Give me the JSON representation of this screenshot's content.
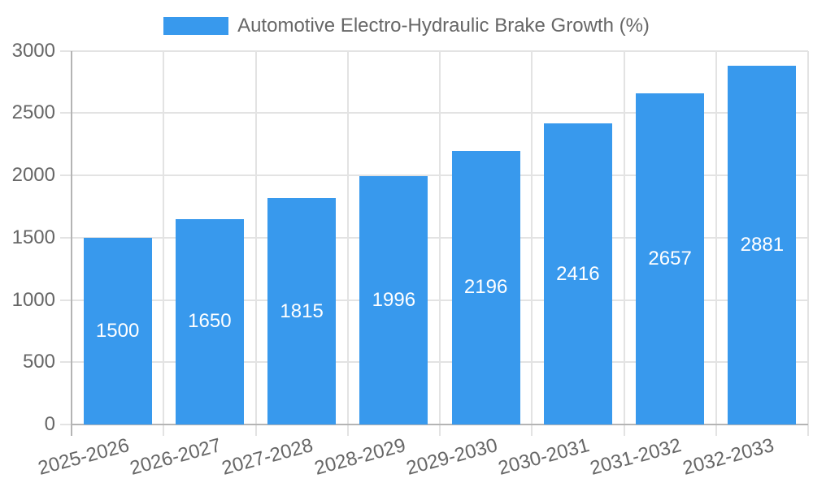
{
  "legend": {
    "label": "Automotive Electro-Hydraulic Brake Growth (%)"
  },
  "chart_data": {
    "type": "bar",
    "title": "Automotive Electro-Hydraulic Brake Growth (%)",
    "categories": [
      "2025-2026",
      "2026-2027",
      "2027-2028",
      "2028-2029",
      "2029-2030",
      "2030-2031",
      "2031-2032",
      "2032-2033"
    ],
    "series": [
      {
        "name": "Automotive Electro-Hydraulic Brake Growth (%)",
        "values": [
          1500,
          1650,
          1815,
          1996,
          2196,
          2416,
          2657,
          2881
        ]
      }
    ],
    "data_labels": [
      "1500",
      "1650",
      "1815",
      "1996",
      "2196",
      "2416",
      "2657",
      "2881"
    ],
    "xlabel": "",
    "ylabel": "",
    "ylim": [
      0,
      3000
    ],
    "yticks": [
      0,
      500,
      1000,
      1500,
      2000,
      2500,
      3000
    ],
    "ytick_labels": [
      "0",
      "500",
      "1000",
      "1500",
      "2000",
      "2500",
      "3000"
    ],
    "grid": true,
    "legend_position": "top",
    "colors": {
      "bar": "#3899ED",
      "bar_label": "#ffffff",
      "axis_text": "#666666",
      "grid_line": "#e3e3e3",
      "axis_line": "#b4b4b4",
      "background": "#ffffff"
    }
  }
}
